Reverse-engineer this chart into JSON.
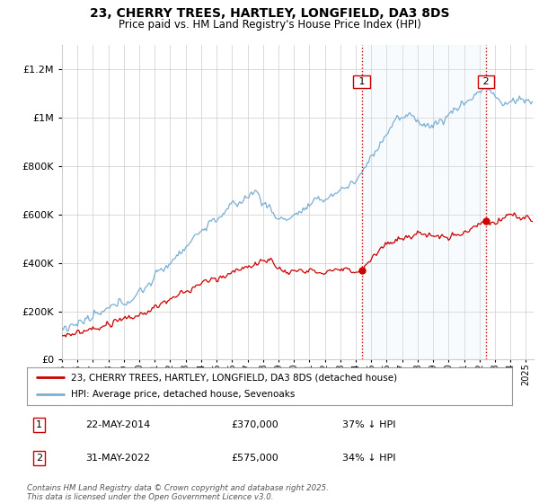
{
  "title": "23, CHERRY TREES, HARTLEY, LONGFIELD, DA3 8DS",
  "subtitle": "Price paid vs. HM Land Registry's House Price Index (HPI)",
  "legend_line1": "23, CHERRY TREES, HARTLEY, LONGFIELD, DA3 8DS (detached house)",
  "legend_line2": "HPI: Average price, detached house, Sevenoaks",
  "annotation1_label": "1",
  "annotation1_date": "22-MAY-2014",
  "annotation1_price": "£370,000",
  "annotation1_hpi": "37% ↓ HPI",
  "annotation2_label": "2",
  "annotation2_date": "31-MAY-2022",
  "annotation2_price": "£575,000",
  "annotation2_hpi": "34% ↓ HPI",
  "footer": "Contains HM Land Registry data © Crown copyright and database right 2025.\nThis data is licensed under the Open Government Licence v3.0.",
  "sale1_year": 2014.38,
  "sale1_value": 370000,
  "sale2_year": 2022.41,
  "sale2_value": 575000,
  "hpi_color": "#7aafd4",
  "hpi_fill_color": "#ddeef8",
  "house_color": "#cc0000",
  "vline_color": "#cc0000",
  "background_color": "#ffffff",
  "grid_color": "#cccccc",
  "ylim": [
    0,
    1300000
  ],
  "xlim_start": 1995,
  "xlim_end": 2025.5
}
